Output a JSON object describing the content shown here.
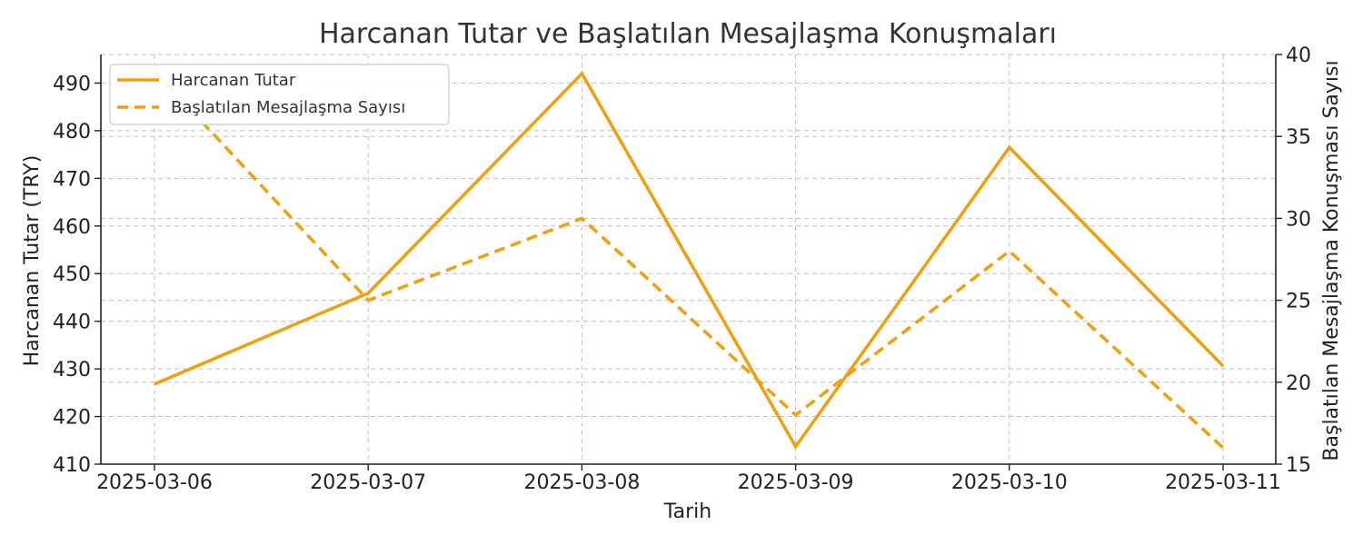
{
  "chart_data": {
    "type": "line",
    "title": "Harcanan Tutar ve Başlatılan Mesajlaşma Konuşmaları",
    "xlabel": "Tarih",
    "ylabel_left": "Harcanan Tutar (TRY)",
    "ylabel_right": "Başlatılan Mesajlaşma Konuşması Sayısı",
    "categories": [
      "2025-03-06",
      "2025-03-07",
      "2025-03-08",
      "2025-03-09",
      "2025-03-10",
      "2025-03-11"
    ],
    "ylim_left": [
      410,
      496
    ],
    "yticks_left": [
      410,
      420,
      430,
      440,
      450,
      460,
      470,
      480,
      490
    ],
    "ylim_right": [
      15,
      40
    ],
    "yticks_right": [
      15,
      20,
      25,
      30,
      35,
      40
    ],
    "grid": true,
    "legend_position": "top-left",
    "series": [
      {
        "name": "Harcanan Tutar",
        "axis": "left",
        "style": "solid",
        "color": "#f0a00c",
        "values": [
          426.8,
          445.9,
          492.0,
          413.7,
          476.5,
          430.6
        ]
      },
      {
        "name": "Başlatılan Mesajlaşma Sayısı",
        "axis": "right",
        "style": "dashed",
        "color": "#f0a00c",
        "values": [
          39,
          25,
          30,
          18,
          28,
          16
        ]
      }
    ]
  }
}
